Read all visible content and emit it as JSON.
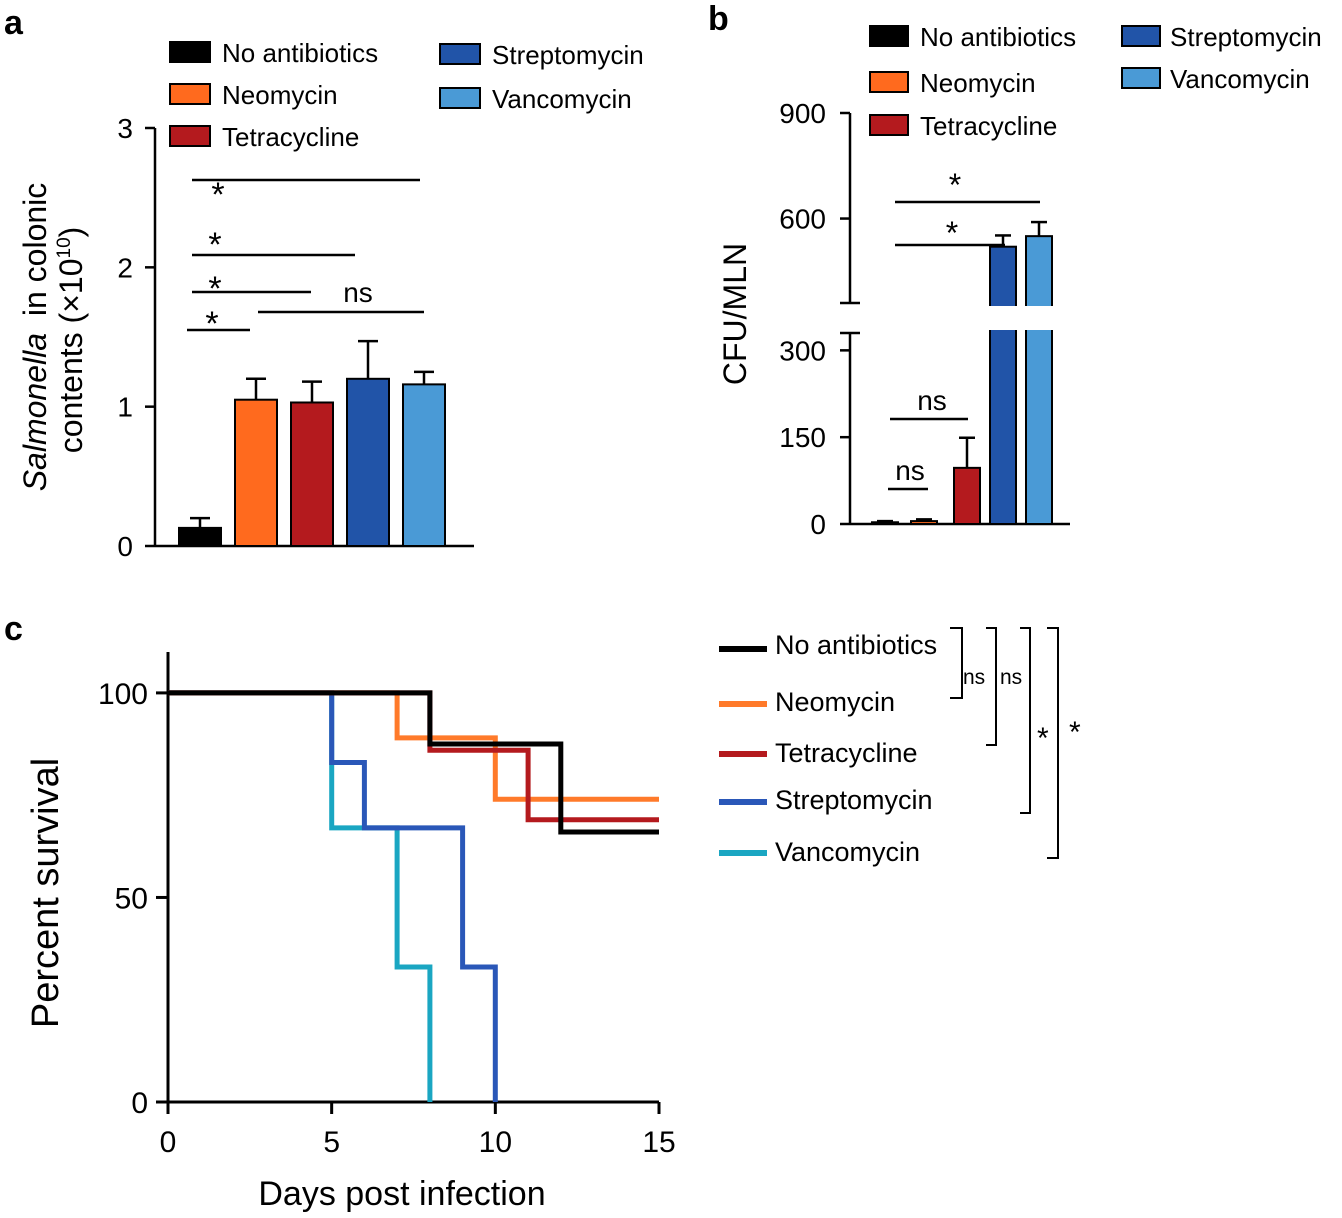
{
  "figure": {
    "colors": {
      "axis": "#000000",
      "background": "#ffffff"
    }
  },
  "chart_data": [
    {
      "panel": "a",
      "type": "bar",
      "categories": [
        "No antibiotics",
        "Neomycin",
        "Tetracycline",
        "Streptomycin",
        "Vancomycin"
      ],
      "values": [
        0.13,
        1.05,
        1.03,
        1.2,
        1.16
      ],
      "errors": [
        0.07,
        0.15,
        0.15,
        0.27,
        0.09
      ],
      "colors": [
        "#000000",
        "#ff6a1e",
        "#b41a1e",
        "#2154a8",
        "#4a9ad6"
      ],
      "ylim": [
        0,
        3
      ],
      "yticks": [
        "0",
        "1",
        "2",
        "3"
      ],
      "ylabel_italic": "Salmonella",
      "ylabel_rest": "in colonic",
      "ylabel_line2": "contents (×10",
      "ylabel_exp": "10",
      "ylabel_close": ")",
      "legend": [
        "No antibiotics",
        "Neomycin",
        "Tetracycline",
        "Streptomycin",
        "Vancomycin"
      ],
      "significance": [
        {
          "label": "*",
          "from": 0,
          "to": 4
        },
        {
          "label": "*",
          "from": 0,
          "to": 3
        },
        {
          "label": "*",
          "from": 0,
          "to": 2
        },
        {
          "label": "*",
          "from": 0,
          "to": 1
        },
        {
          "label": "ns",
          "from": 1,
          "to": 4
        }
      ]
    },
    {
      "panel": "b",
      "type": "bar",
      "categories": [
        "No antibiotics",
        "Neomycin",
        "Tetracycline",
        "Streptomycin",
        "Vancomycin"
      ],
      "values": [
        3,
        5,
        97,
        520,
        550
      ],
      "errors": [
        2,
        3,
        52,
        32,
        40
      ],
      "colors": [
        "#000000",
        "#ff6a1e",
        "#b41a1e",
        "#2154a8",
        "#4a9ad6"
      ],
      "lower_ylim": [
        0,
        330
      ],
      "upper_ylim": [
        360,
        900
      ],
      "yticks": [
        "0",
        "150",
        "300",
        "600",
        "900"
      ],
      "ylabel": "CFU/MLN",
      "legend": [
        "No antibiotics",
        "Neomycin",
        "Tetracycline",
        "Streptomycin",
        "Vancomycin"
      ],
      "significance": [
        {
          "label": "*",
          "from": 0,
          "to": 4
        },
        {
          "label": "*",
          "from": 0,
          "to": 3
        },
        {
          "label": "ns",
          "from": 0,
          "to": 2
        },
        {
          "label": "ns",
          "from": 0,
          "to": 1
        }
      ]
    },
    {
      "panel": "c",
      "type": "line",
      "subtype": "step",
      "xlabel": "Days post infection",
      "ylabel": "Percent survival",
      "xlim": [
        0,
        15
      ],
      "ylim": [
        0,
        110
      ],
      "xticks": [
        "0",
        "5",
        "10",
        "15"
      ],
      "yticks": [
        "0",
        "50",
        "100"
      ],
      "series": [
        {
          "name": "No antibiotics",
          "color": "#000000",
          "points": [
            [
              0,
              100
            ],
            [
              8,
              100
            ],
            [
              8,
              87.5
            ],
            [
              12,
              87.5
            ],
            [
              12,
              66
            ],
            [
              15,
              66
            ]
          ]
        },
        {
          "name": "Neomycin",
          "color": "#ff7a2a",
          "points": [
            [
              0,
              100
            ],
            [
              7,
              100
            ],
            [
              7,
              89
            ],
            [
              10,
              89
            ],
            [
              10,
              74
            ],
            [
              15,
              74
            ]
          ]
        },
        {
          "name": "Tetracycline",
          "color": "#b41a1e",
          "points": [
            [
              0,
              100
            ],
            [
              8,
              100
            ],
            [
              8,
              86
            ],
            [
              11,
              86
            ],
            [
              11,
              69
            ],
            [
              15,
              69
            ]
          ]
        },
        {
          "name": "Streptomycin",
          "color": "#2a57b8",
          "points": [
            [
              0,
              100
            ],
            [
              5,
              100
            ],
            [
              5,
              83
            ],
            [
              6,
              83
            ],
            [
              6,
              67
            ],
            [
              9,
              67
            ],
            [
              9,
              33
            ],
            [
              10,
              33
            ],
            [
              10,
              0
            ]
          ]
        },
        {
          "name": "Vancomycin",
          "color": "#1aa6c2",
          "points": [
            [
              0,
              100
            ],
            [
              5,
              100
            ],
            [
              5,
              67
            ],
            [
              7,
              67
            ],
            [
              7,
              33
            ],
            [
              8,
              33
            ],
            [
              8,
              0
            ]
          ]
        }
      ],
      "legend": [
        "No antibiotics",
        "Neomycin",
        "Tetracycline",
        "Streptomycin",
        "Vancomycin"
      ],
      "significance": [
        {
          "label": "ns",
          "from": 0,
          "to": 1
        },
        {
          "label": "ns",
          "from": 0,
          "to": 2
        },
        {
          "label": "*",
          "from": 0,
          "to": 3
        },
        {
          "label": "*",
          "from": 0,
          "to": 4
        }
      ]
    }
  ],
  "panel_labels": [
    "a",
    "b",
    "c"
  ]
}
